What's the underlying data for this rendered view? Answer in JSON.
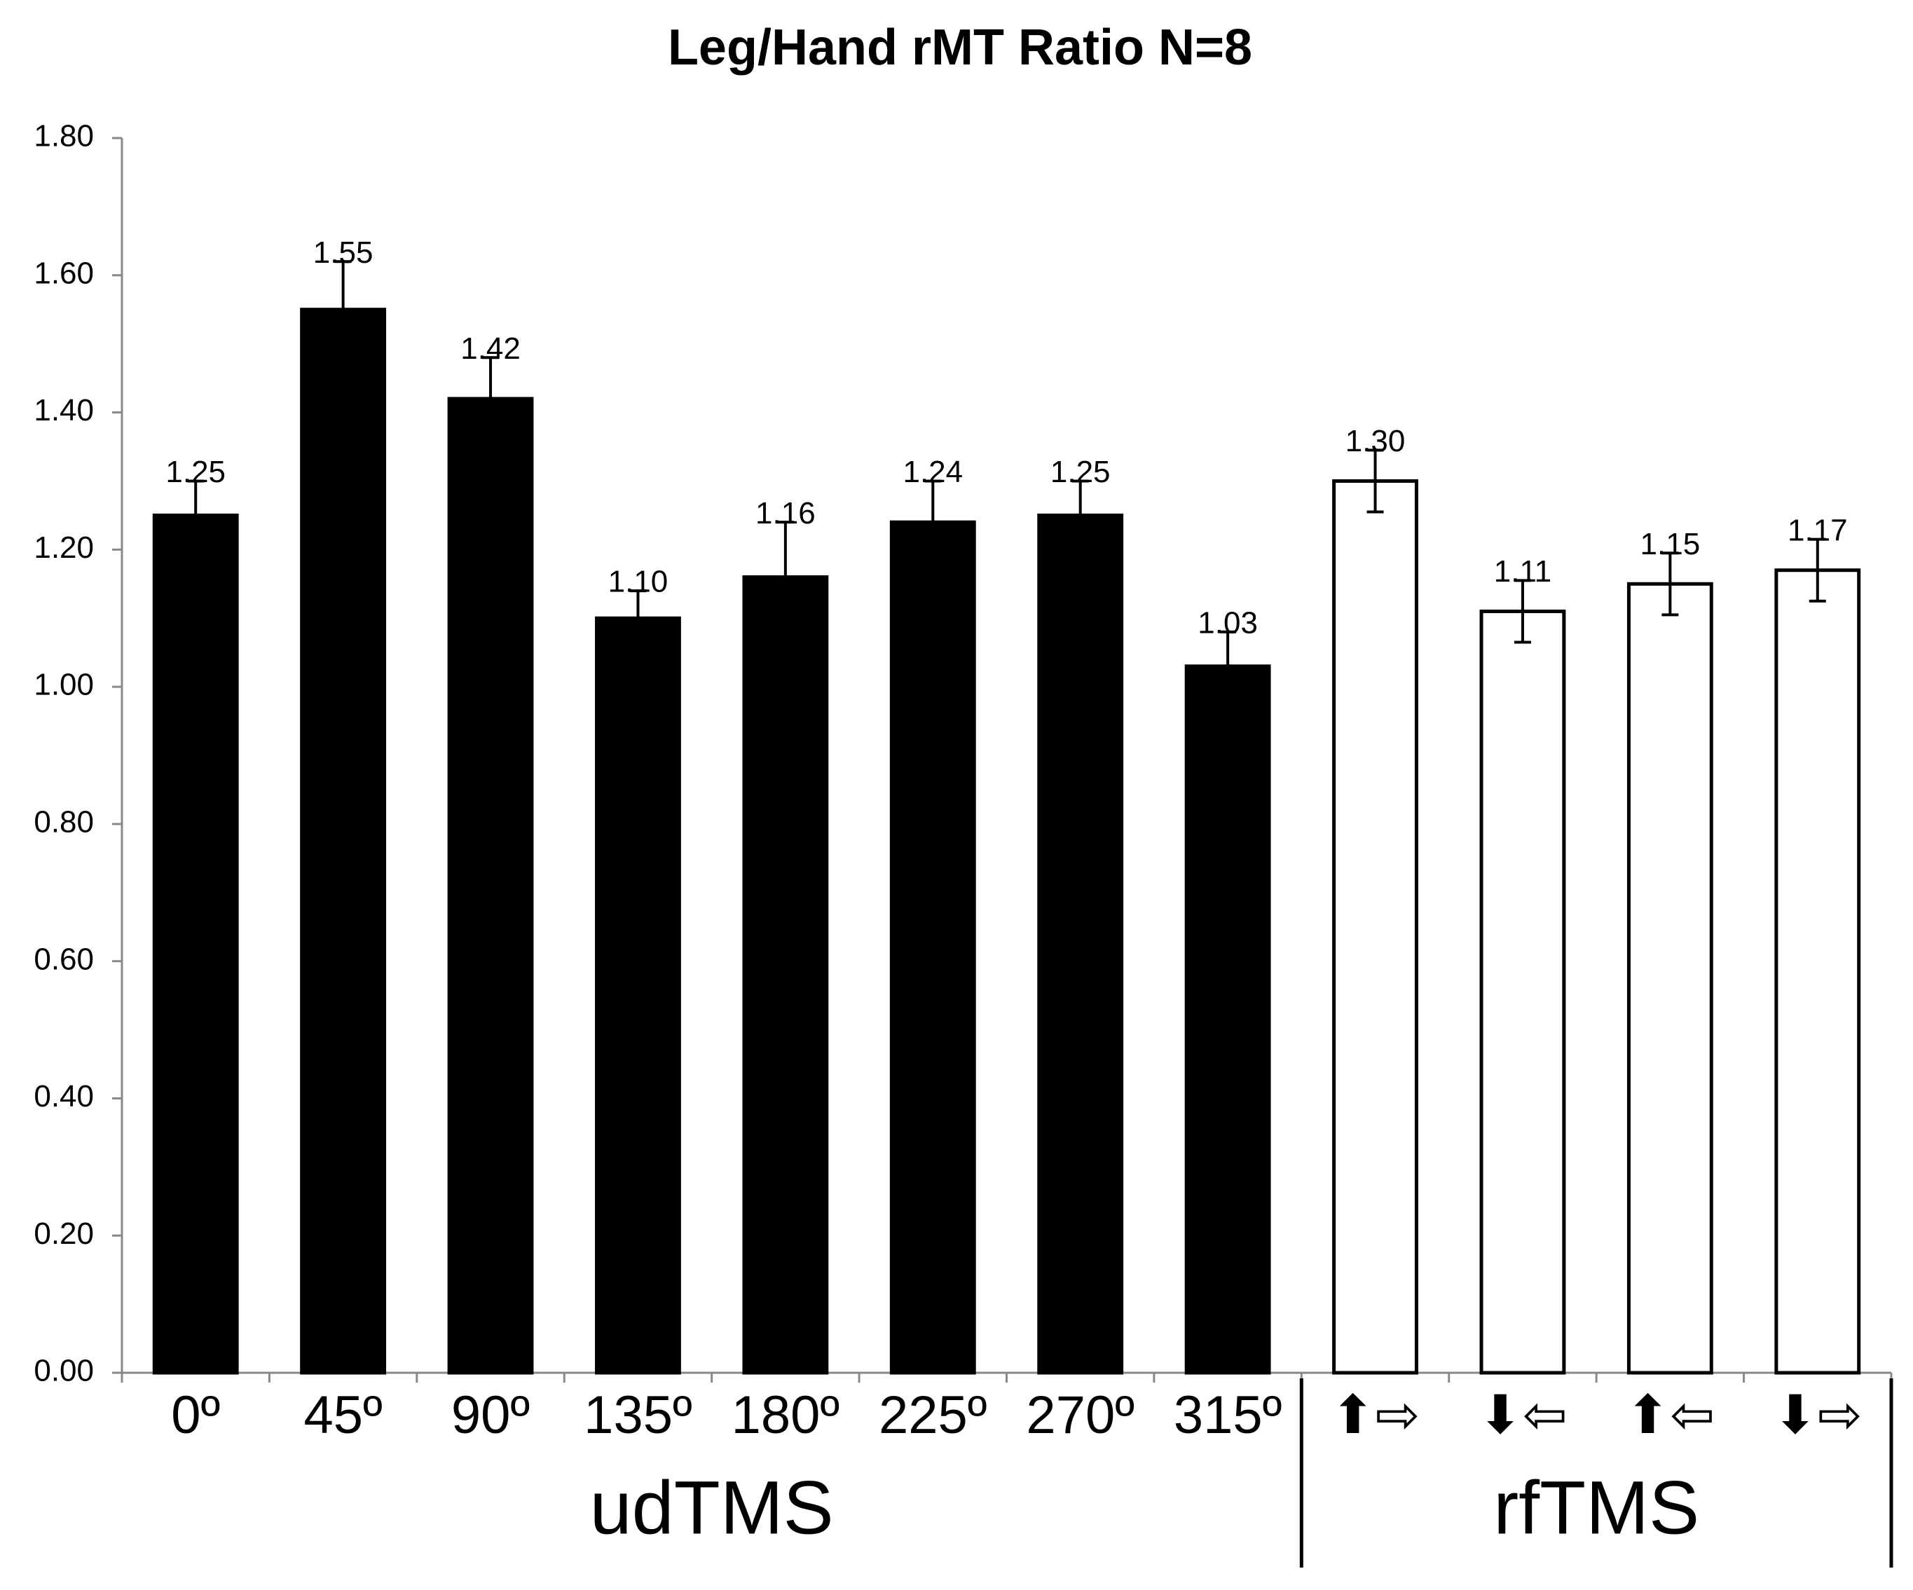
{
  "chart_data": {
    "type": "bar",
    "title": "Leg/Hand rMT Ratio N=8",
    "categories": [
      "0º",
      "45º",
      "90º",
      "135º",
      "180º",
      "225º",
      "270º",
      "315º",
      "⬆⇨",
      "⬇⇦",
      "⬆⇦",
      "⬇⇨"
    ],
    "values": [
      1.25,
      1.55,
      1.42,
      1.1,
      1.16,
      1.24,
      1.25,
      1.03,
      1.3,
      1.11,
      1.15,
      1.17
    ],
    "value_labels": [
      "1.25",
      "1.55",
      "1.42",
      "1.10",
      "1.16",
      "1.24",
      "1.25",
      "1.03",
      "1.30",
      "1.11",
      "1.15",
      "1.17"
    ],
    "errors": [
      0.05,
      0.07,
      0.06,
      0.04,
      0.08,
      0.06,
      0.05,
      0.05,
      0.045,
      0.045,
      0.045,
      0.045
    ],
    "colors": [
      "#000000",
      "#000000",
      "#000000",
      "#000000",
      "#000000",
      "#000000",
      "#000000",
      "#000000",
      "#ffffff",
      "#ffffff",
      "#ffffff",
      "#ffffff"
    ],
    "groups": [
      {
        "label": "udTMS",
        "count": 8
      },
      {
        "label": "rfTMS",
        "count": 4
      }
    ],
    "ylim": [
      0,
      1.8
    ],
    "yticks": [
      {
        "value": 0,
        "label": "0.00"
      },
      {
        "value": 0.2,
        "label": "0.20"
      },
      {
        "value": 0.4,
        "label": "0.40"
      },
      {
        "value": 0.6,
        "label": "0.60"
      },
      {
        "value": 0.8,
        "label": "0.80"
      },
      {
        "value": 1,
        "label": "1.00"
      },
      {
        "value": 1.2,
        "label": "1.20"
      },
      {
        "value": 1.4,
        "label": "1.40"
      },
      {
        "value": 1.6,
        "label": "1.60"
      },
      {
        "value": 1.8,
        "label": "1.80"
      }
    ],
    "grid": false
  }
}
